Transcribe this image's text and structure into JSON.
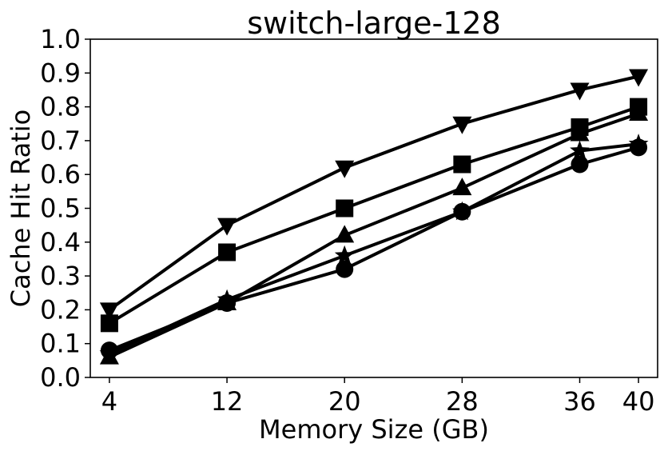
{
  "chart_data": {
    "type": "line",
    "title": "switch-large-128",
    "xlabel": "Memory Size (GB)",
    "ylabel": "Cache Hit Ratio",
    "x": [
      4,
      12,
      20,
      28,
      36,
      40
    ],
    "xticks": [
      "4",
      "12",
      "20",
      "28",
      "36",
      "40"
    ],
    "xlim": [
      2.7,
      41.3
    ],
    "ylim": [
      0.0,
      1.0
    ],
    "yticks": [
      "0.0",
      "0.1",
      "0.2",
      "0.3",
      "0.4",
      "0.5",
      "0.6",
      "0.7",
      "0.8",
      "0.9",
      "1.0"
    ],
    "grid": false,
    "legend": "none",
    "series": [
      {
        "marker": "triangle-down",
        "color": "#000000",
        "values": [
          0.2,
          0.45,
          0.62,
          0.75,
          0.85,
          0.89
        ]
      },
      {
        "marker": "square",
        "color": "#000000",
        "values": [
          0.16,
          0.37,
          0.5,
          0.63,
          0.74,
          0.8
        ]
      },
      {
        "marker": "triangle-up",
        "color": "#000000",
        "values": [
          0.06,
          0.22,
          0.42,
          0.56,
          0.72,
          0.78
        ]
      },
      {
        "marker": "star",
        "color": "#000000",
        "values": [
          0.07,
          0.23,
          0.36,
          0.49,
          0.67,
          0.69
        ]
      },
      {
        "marker": "circle",
        "color": "#000000",
        "values": [
          0.08,
          0.22,
          0.32,
          0.49,
          0.63,
          0.68
        ]
      }
    ]
  }
}
